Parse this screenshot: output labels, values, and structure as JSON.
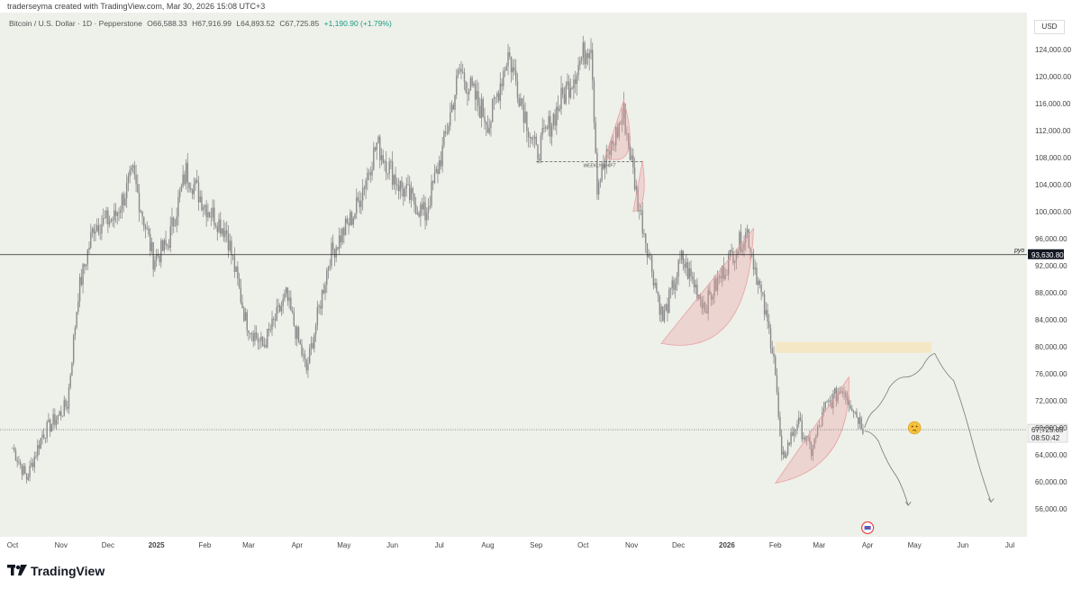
{
  "header": {
    "credit": "traderseyma created with TradingView.com, Mar 30, 2026 15:08 UTC+3"
  },
  "legend": {
    "symbol": "Bitcoin / U.S. Dollar · 1D · Pepperstone",
    "open": "O66,588.33",
    "high": "H67,916.99",
    "low": "L64,893.52",
    "close": "C67,725.85",
    "change": "+1,190.90 (+1.79%)"
  },
  "currency": "USD",
  "footer": {
    "brand": "TradingView"
  },
  "colors": {
    "plot_bg": "#eef0ea",
    "candle": "#8a8a8a",
    "accent_red": "#e8a0a0",
    "accent_yellow": "#f7e3b5",
    "text": "#555555"
  },
  "chart_data": {
    "type": "line",
    "title": "Bitcoin / U.S. Dollar · 1D · Pepperstone",
    "x_ticks": [
      "Oct",
      "Nov",
      "Dec",
      "2025",
      "Feb",
      "Mar",
      "Apr",
      "May",
      "Jun",
      "Jul",
      "Aug",
      "Sep",
      "Oct",
      "Nov",
      "Dec",
      "2026",
      "Feb",
      "Mar",
      "Apr",
      "May",
      "Jun",
      "Jul"
    ],
    "y_ticks": [
      124000,
      120000,
      116000,
      112000,
      108000,
      104000,
      100000,
      96000,
      92000,
      88000,
      84000,
      80000,
      76000,
      72000,
      68000,
      64000,
      60000,
      56000
    ],
    "y_tick_labels": [
      "124,000.00",
      "120,000.00",
      "116,000.00",
      "112,000.00",
      "108,000.00",
      "104,000.00",
      "100,000.00",
      "96,000.00",
      "92,000.00",
      "88,000.00",
      "84,000.00",
      "80,000.00",
      "76,000.00",
      "72,000.00",
      "68,000.00",
      "64,000.00",
      "60,000.00",
      "56,000.00"
    ],
    "ylim": [
      53000,
      127500
    ],
    "series": [
      {
        "values": [
          [
            "2024-10-01",
            65000
          ],
          [
            "2024-10-10",
            60500
          ],
          [
            "2024-10-20",
            67000
          ],
          [
            "2024-10-31",
            70000
          ],
          [
            "2024-11-05",
            71500
          ],
          [
            "2024-11-12",
            88000
          ],
          [
            "2024-11-22",
            98000
          ],
          [
            "2024-12-05",
            99000
          ],
          [
            "2024-12-17",
            105500
          ],
          [
            "2024-12-30",
            93000
          ],
          [
            "2025-01-08",
            95000
          ],
          [
            "2025-01-20",
            106000
          ],
          [
            "2025-02-01",
            101000
          ],
          [
            "2025-02-15",
            97000
          ],
          [
            "2025-02-27",
            84000
          ],
          [
            "2025-03-10",
            80000
          ],
          [
            "2025-03-25",
            87500
          ],
          [
            "2025-04-07",
            76500
          ],
          [
            "2025-04-22",
            93500
          ],
          [
            "2025-05-08",
            100000
          ],
          [
            "2025-05-22",
            110000
          ],
          [
            "2025-06-05",
            104000
          ],
          [
            "2025-06-22",
            99500
          ],
          [
            "2025-07-03",
            109000
          ],
          [
            "2025-07-14",
            121000
          ],
          [
            "2025-08-02",
            113000
          ],
          [
            "2025-08-14",
            123500
          ],
          [
            "2025-09-01",
            108500
          ],
          [
            "2025-09-18",
            117000
          ],
          [
            "2025-10-06",
            125500
          ],
          [
            "2025-10-10",
            104000
          ],
          [
            "2025-10-27",
            114500
          ],
          [
            "2025-11-05",
            101500
          ],
          [
            "2025-11-21",
            84000
          ],
          [
            "2025-12-03",
            93000
          ],
          [
            "2025-12-18",
            86000
          ],
          [
            "2026-01-05",
            94000
          ],
          [
            "2026-01-14",
            97000
          ],
          [
            "2026-01-31",
            79000
          ],
          [
            "2026-02-05",
            63000
          ],
          [
            "2026-02-15",
            69000
          ],
          [
            "2026-02-24",
            64500
          ],
          [
            "2026-03-05",
            71000
          ],
          [
            "2026-03-16",
            74000
          ],
          [
            "2026-03-30",
            67725.85
          ]
        ]
      }
    ],
    "price_lines": [
      {
        "label": "pyo",
        "value": 93630.8,
        "value_label": "93,630.80"
      },
      {
        "label": "last",
        "value": 67725.85,
        "value_label": "67,725.85",
        "countdown": "08:50:42"
      }
    ],
    "annotations": [
      {
        "text": "WEEKLY SHIFT"
      }
    ],
    "projections": [
      {
        "points": [
          [
            "2026-03-30",
            68000
          ],
          [
            "2026-04-05",
            70500
          ],
          [
            "2026-04-15",
            74000
          ],
          [
            "2026-04-25",
            75500
          ],
          [
            "2026-05-06",
            77000
          ],
          [
            "2026-05-14",
            79000
          ],
          [
            "2026-05-26",
            75000
          ],
          [
            "2026-06-07",
            66000
          ],
          [
            "2026-06-19",
            57000
          ]
        ]
      },
      {
        "points": [
          [
            "2026-03-30",
            67500
          ],
          [
            "2026-04-08",
            66000
          ],
          [
            "2026-04-19",
            61000
          ],
          [
            "2026-04-27",
            56500
          ]
        ]
      }
    ],
    "grid": false
  }
}
